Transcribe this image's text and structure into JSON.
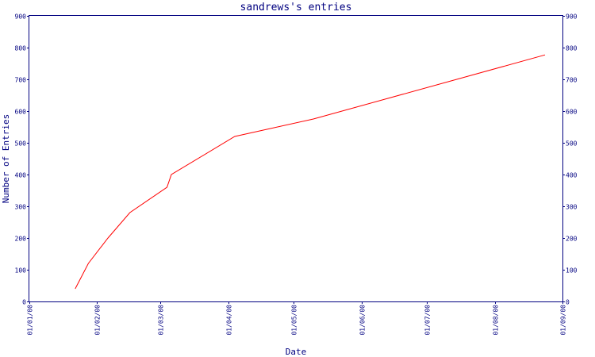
{
  "chart_data": {
    "type": "line",
    "title": "sandrews's entries",
    "xlabel": "Date",
    "ylabel": "Number of Entries",
    "ylim": [
      0,
      900
    ],
    "yticks": [
      0,
      100,
      200,
      300,
      400,
      500,
      600,
      700,
      800,
      900
    ],
    "xlim": [
      "2000-01-01",
      "2000-09-01"
    ],
    "xticks": [
      {
        "date": "2000-01-01",
        "label": "01/01/00"
      },
      {
        "date": "2000-02-01",
        "label": "01/02/00"
      },
      {
        "date": "2000-03-01",
        "label": "01/03/00"
      },
      {
        "date": "2000-04-01",
        "label": "01/04/00"
      },
      {
        "date": "2000-05-01",
        "label": "01/05/00"
      },
      {
        "date": "2000-06-01",
        "label": "01/06/00"
      },
      {
        "date": "2000-07-01",
        "label": "01/07/00"
      },
      {
        "date": "2000-08-01",
        "label": "01/08/00"
      },
      {
        "date": "2000-09-01",
        "label": "01/09/00"
      }
    ],
    "y_axis_right": true,
    "grid": false,
    "colors": {
      "line": "#ff0000",
      "axis": "#000080",
      "text": "#000080"
    },
    "series": [
      {
        "x": [
          "2000-01-22",
          "2000-01-28",
          "2000-02-06",
          "2000-02-16",
          "2000-03-04",
          "2000-03-06",
          "2000-04-04",
          "2000-05-10",
          "2000-08-24"
        ],
        "values": [
          40,
          120,
          200,
          280,
          360,
          400,
          520,
          575,
          777
        ]
      }
    ]
  }
}
